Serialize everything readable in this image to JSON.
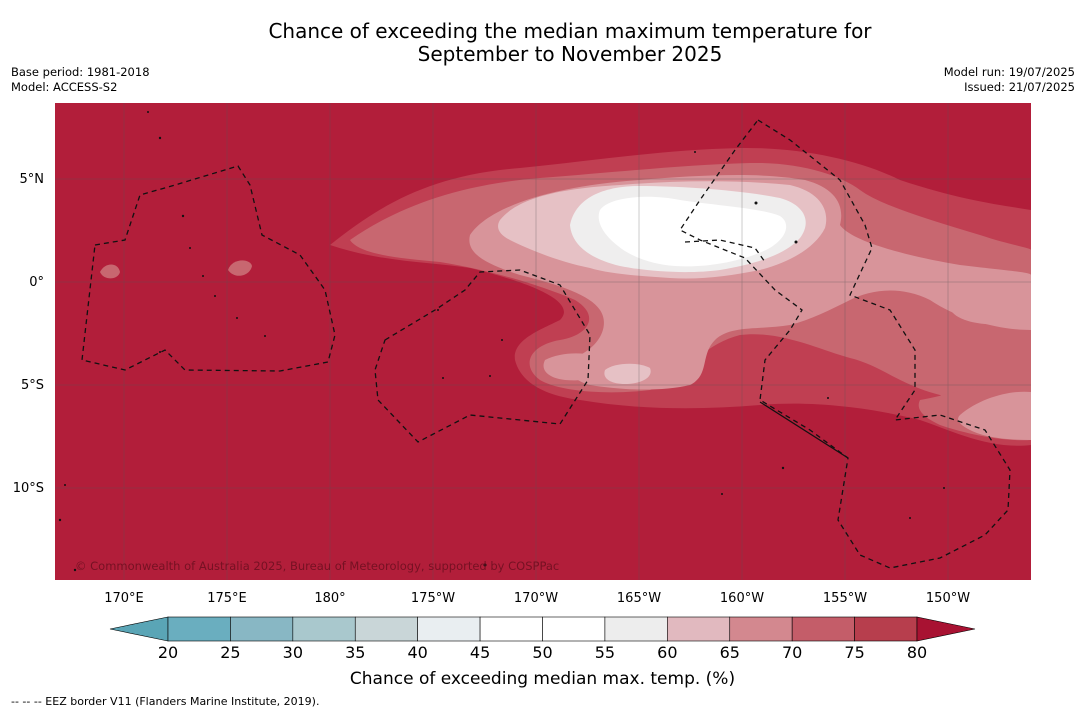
{
  "title": {
    "line1": "Chance of exceeding the median maximum temperature for",
    "line2": "September to November 2025"
  },
  "meta_left": {
    "base_period": "Base period: 1981-2018",
    "model": "Model: ACCESS-S2"
  },
  "meta_right": {
    "model_run": "Model run: 19/07/2025",
    "issued": "Issued: 21/07/2025"
  },
  "copyright": "© Commonwealth of Australia 2025, Bureau of Meteorology, supported by COSPPac",
  "lat_labels": [
    "5°N",
    "0°",
    "5°S",
    "10°S"
  ],
  "lon_labels": [
    "170°E",
    "175°E",
    "180°",
    "175°W",
    "170°W",
    "165°W",
    "160°W",
    "155°W",
    "150°W"
  ],
  "colorbar": {
    "label": "Chance of exceeding median max. temp. (%)",
    "ticks": [
      "20",
      "25",
      "30",
      "35",
      "40",
      "45",
      "50",
      "55",
      "60",
      "65",
      "70",
      "75",
      "80"
    ],
    "colors": [
      "#6aaebf",
      "#88b7c4",
      "#a9c8cd",
      "#c9d6d8",
      "#e9eef1",
      "#ffffff",
      "#ffffff",
      "#ededed",
      "#e1b9bf",
      "#d3888f",
      "#c45d69",
      "#b73e4d"
    ],
    "under_color": "#5aa5b6",
    "over_color": "#a81232"
  },
  "footnote": "--  --  -- EEZ border V11 (Flanders Marine Institute, 2019).",
  "colors": {
    "c80": "#b21e3a",
    "c75": "#c03f52",
    "c70": "#c86770",
    "c65": "#d8949a",
    "c60": "#e6c1c5",
    "c55": "#efeeee",
    "c50": "#ffffff"
  }
}
